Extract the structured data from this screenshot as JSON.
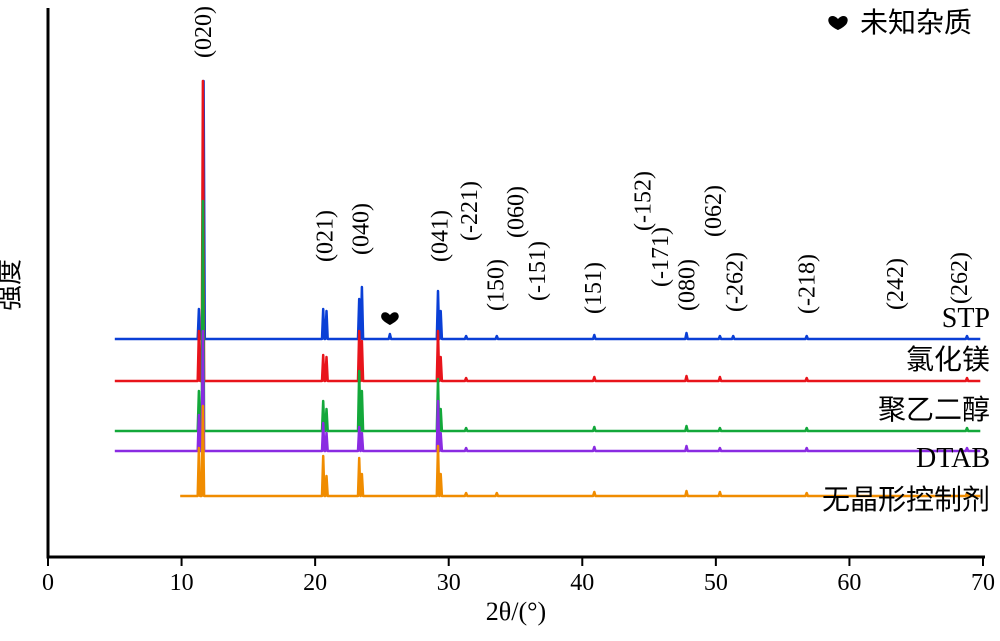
{
  "chart_data": {
    "type": "line",
    "xlabel": "2θ/(°)",
    "ylabel": "强度",
    "xlim": [
      0,
      70
    ],
    "xticks": [
      0,
      10,
      20,
      30,
      40,
      50,
      60,
      70
    ],
    "grid": false,
    "legend": {
      "marker_label": "未知杂质",
      "marker_color": "#000000",
      "placement": "top-right"
    },
    "unknown_impurity_x": 25.6,
    "peak_labels": [
      {
        "text": "(020)",
        "x": 11.6
      },
      {
        "text": "(021)",
        "x": 20.7
      },
      {
        "text": "(040)",
        "x": 23.4
      },
      {
        "text": "(041)",
        "x": 29.3
      },
      {
        "text": "(-221)",
        "x": 31.5
      },
      {
        "text": "(150)",
        "x": 33.5
      },
      {
        "text": "(060)",
        "x": 35.0
      },
      {
        "text": "(-151)",
        "x": 36.6
      },
      {
        "text": "(151)",
        "x": 40.8
      },
      {
        "text": "(-152)",
        "x": 44.5
      },
      {
        "text": "(-171)",
        "x": 45.8
      },
      {
        "text": "(080)",
        "x": 47.8
      },
      {
        "text": "(062)",
        "x": 49.8
      },
      {
        "text": "(-262)",
        "x": 51.4
      },
      {
        "text": "(-218)",
        "x": 56.8
      },
      {
        "text": "(242)",
        "x": 63.4
      },
      {
        "text": "(262)",
        "x": 68.2
      }
    ],
    "series": [
      {
        "name": "STP",
        "color": "#0a3fd6",
        "x_start": 5,
        "baseline": 0,
        "peaks": [
          {
            "x": 11.3,
            "h": 30
          },
          {
            "x": 11.65,
            "h": 258
          },
          {
            "x": 20.6,
            "h": 30
          },
          {
            "x": 20.85,
            "h": 28
          },
          {
            "x": 23.3,
            "h": 40
          },
          {
            "x": 23.5,
            "h": 52
          },
          {
            "x": 25.6,
            "h": 5
          },
          {
            "x": 29.2,
            "h": 48
          },
          {
            "x": 29.4,
            "h": 28
          },
          {
            "x": 31.3,
            "h": 3
          },
          {
            "x": 33.6,
            "h": 3
          },
          {
            "x": 40.9,
            "h": 4
          },
          {
            "x": 47.8,
            "h": 6
          },
          {
            "x": 50.3,
            "h": 3
          },
          {
            "x": 51.3,
            "h": 3
          },
          {
            "x": 56.8,
            "h": 3
          },
          {
            "x": 68.8,
            "h": 3
          }
        ]
      },
      {
        "name": "氯化镁",
        "color": "#e8141b",
        "x_start": 5,
        "baseline": 0,
        "peaks": [
          {
            "x": 11.3,
            "h": 50
          },
          {
            "x": 11.6,
            "h": 300
          },
          {
            "x": 20.6,
            "h": 26
          },
          {
            "x": 20.85,
            "h": 24
          },
          {
            "x": 23.3,
            "h": 50
          },
          {
            "x": 23.5,
            "h": 40
          },
          {
            "x": 29.2,
            "h": 50
          },
          {
            "x": 29.4,
            "h": 24
          },
          {
            "x": 31.3,
            "h": 3
          },
          {
            "x": 40.9,
            "h": 4
          },
          {
            "x": 47.8,
            "h": 5
          },
          {
            "x": 50.3,
            "h": 4
          },
          {
            "x": 56.8,
            "h": 3
          },
          {
            "x": 68.8,
            "h": 3
          }
        ]
      },
      {
        "name": "聚乙二醇",
        "color": "#13a83a",
        "x_start": 5,
        "baseline": 0,
        "peaks": [
          {
            "x": 11.3,
            "h": 40
          },
          {
            "x": 11.6,
            "h": 230
          },
          {
            "x": 20.6,
            "h": 30
          },
          {
            "x": 20.85,
            "h": 22
          },
          {
            "x": 23.3,
            "h": 60
          },
          {
            "x": 23.5,
            "h": 40
          },
          {
            "x": 29.2,
            "h": 52
          },
          {
            "x": 29.4,
            "h": 22
          },
          {
            "x": 31.3,
            "h": 3
          },
          {
            "x": 40.9,
            "h": 4
          },
          {
            "x": 47.8,
            "h": 5
          },
          {
            "x": 50.3,
            "h": 3
          },
          {
            "x": 56.8,
            "h": 3
          },
          {
            "x": 68.8,
            "h": 3
          }
        ]
      },
      {
        "name": "DTAB",
        "color": "#8a2be2",
        "x_start": 5,
        "baseline": 0,
        "peaks": [
          {
            "x": 11.3,
            "h": 36
          },
          {
            "x": 11.6,
            "h": 120
          },
          {
            "x": 20.6,
            "h": 28
          },
          {
            "x": 20.85,
            "h": 18
          },
          {
            "x": 23.3,
            "h": 24
          },
          {
            "x": 23.5,
            "h": 18
          },
          {
            "x": 29.2,
            "h": 50
          },
          {
            "x": 29.4,
            "h": 18
          },
          {
            "x": 31.3,
            "h": 3
          },
          {
            "x": 40.9,
            "h": 4
          },
          {
            "x": 47.8,
            "h": 5
          },
          {
            "x": 50.3,
            "h": 3
          },
          {
            "x": 56.8,
            "h": 3
          },
          {
            "x": 68.8,
            "h": 3
          }
        ]
      },
      {
        "name": "无晶形控制剂",
        "color": "#f08c00",
        "x_start": 9.9,
        "baseline": 0,
        "peaks": [
          {
            "x": 11.3,
            "h": 48
          },
          {
            "x": 11.6,
            "h": 90
          },
          {
            "x": 20.6,
            "h": 40
          },
          {
            "x": 20.85,
            "h": 20
          },
          {
            "x": 23.3,
            "h": 38
          },
          {
            "x": 23.5,
            "h": 22
          },
          {
            "x": 29.2,
            "h": 50
          },
          {
            "x": 29.4,
            "h": 22
          },
          {
            "x": 31.3,
            "h": 3
          },
          {
            "x": 33.6,
            "h": 3
          },
          {
            "x": 40.9,
            "h": 4
          },
          {
            "x": 47.8,
            "h": 5
          },
          {
            "x": 50.3,
            "h": 4
          },
          {
            "x": 56.8,
            "h": 3
          },
          {
            "x": 68.8,
            "h": 3
          }
        ]
      }
    ]
  }
}
